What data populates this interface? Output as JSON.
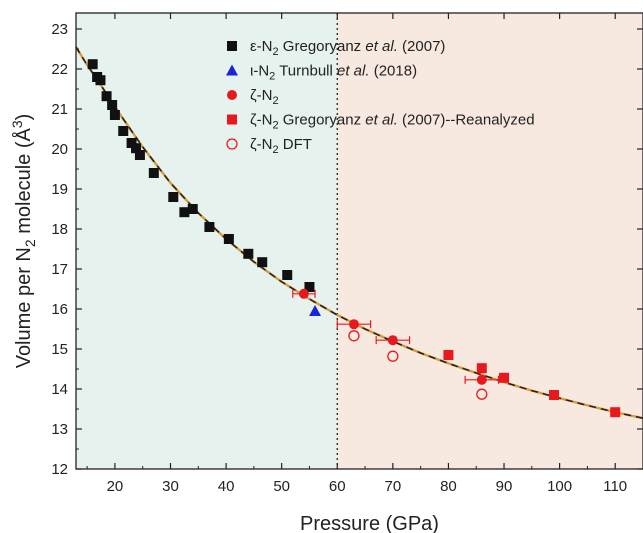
{
  "chart_data": {
    "type": "scatter",
    "xlabel": "Pressure (GPa)",
    "ylabel": "Volume per N2 molecule (Å3)",
    "ylabel_parts": {
      "pre": "Volume per N",
      "sub": "2",
      "mid": " molecule (Å",
      "sup": "3",
      "post": ")"
    },
    "xlim": [
      13,
      115
    ],
    "ylim": [
      12,
      23.4
    ],
    "x_ticks": [
      20,
      30,
      40,
      50,
      60,
      70,
      80,
      90,
      100,
      110
    ],
    "y_ticks": [
      12,
      13,
      14,
      15,
      16,
      17,
      18,
      19,
      20,
      21,
      22,
      23
    ],
    "phase_boundary_x": 60,
    "regions": [
      {
        "x0": 13,
        "x1": 60,
        "color": "#e6f2ee"
      },
      {
        "x0": 60,
        "x1": 115,
        "color": "#f8e9e0"
      }
    ],
    "grid": false,
    "legend_position": "top-right",
    "fit_curve": {
      "x": [
        13,
        15,
        17,
        20,
        25,
        30,
        35,
        40,
        45,
        50,
        55,
        60,
        65,
        70,
        75,
        80,
        85,
        90,
        95,
        100,
        105,
        110,
        115
      ],
      "y": [
        22.55,
        22.1,
        21.7,
        21.05,
        20.05,
        19.15,
        18.4,
        17.75,
        17.18,
        16.68,
        16.25,
        15.85,
        15.5,
        15.19,
        14.9,
        14.64,
        14.4,
        14.17,
        13.96,
        13.77,
        13.59,
        13.42,
        13.27
      ],
      "colors": [
        "#d99a3c",
        "#222222"
      ]
    },
    "series": [
      {
        "name_parts": [
          "ε-N",
          "2",
          " Gregoryanz ",
          "et al.",
          " (2007)"
        ],
        "marker": "square-filled",
        "color": "#111111",
        "points": [
          [
            16,
            22.12
          ],
          [
            16.8,
            21.8
          ],
          [
            17.4,
            21.72
          ],
          [
            18.5,
            21.32
          ],
          [
            19.5,
            21.1
          ],
          [
            20,
            20.85
          ],
          [
            21.5,
            20.45
          ],
          [
            23,
            20.15
          ],
          [
            23.8,
            20.02
          ],
          [
            24.5,
            19.85
          ],
          [
            27,
            19.4
          ],
          [
            30.5,
            18.8
          ],
          [
            32.5,
            18.42
          ],
          [
            34,
            18.5
          ],
          [
            37,
            18.05
          ],
          [
            40.5,
            17.75
          ],
          [
            44,
            17.38
          ],
          [
            46.5,
            17.17
          ],
          [
            51,
            16.85
          ],
          [
            55,
            16.55
          ]
        ]
      },
      {
        "name_parts": [
          "ι-N",
          "2",
          " Turnbull ",
          "et al.",
          " (2018)"
        ],
        "marker": "triangle-filled",
        "color": "#1a25d6",
        "points": [
          [
            56,
            15.95
          ]
        ]
      },
      {
        "name_parts": [
          "ζ-N",
          "2",
          "",
          "",
          ""
        ],
        "marker": "circle-filled",
        "color": "#e8191e",
        "points": [
          [
            54,
            16.38
          ],
          [
            63,
            15.62
          ],
          [
            70,
            15.22
          ],
          [
            86,
            14.23
          ]
        ],
        "xerr": [
          2,
          3,
          3,
          3
        ]
      },
      {
        "name_parts": [
          "ζ-N",
          "2",
          " Gregoryanz ",
          "et al.",
          " (2007)--Reanalyzed"
        ],
        "marker": "square-filled",
        "color": "#e8191e",
        "points": [
          [
            80,
            14.85
          ],
          [
            86,
            14.52
          ],
          [
            90,
            14.28
          ],
          [
            99,
            13.85
          ],
          [
            110,
            13.42
          ]
        ]
      },
      {
        "name_parts": [
          "ζ-N",
          "2",
          " DFT",
          "",
          ""
        ],
        "marker": "circle-open",
        "color": "#e8191e",
        "points": [
          [
            63,
            15.33
          ],
          [
            70,
            14.82
          ],
          [
            86,
            13.87
          ]
        ]
      }
    ]
  }
}
